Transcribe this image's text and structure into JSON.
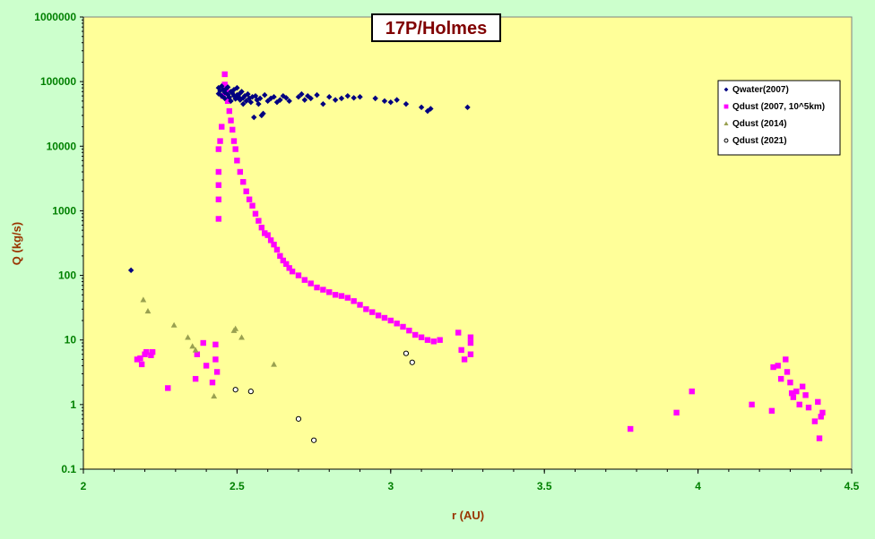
{
  "chart_data": {
    "type": "scatter",
    "title": "17P/Holmes",
    "xlabel": "r (AU)",
    "ylabel": "Q (kg/s)",
    "xlim": [
      2,
      4.5
    ],
    "ylim": [
      0.1,
      1000000
    ],
    "yscale": "log",
    "x_ticks": [
      "2",
      "2.5",
      "3",
      "3.5",
      "4",
      "4.5"
    ],
    "y_ticks": [
      "0.1",
      "1",
      "10",
      "100",
      "1000",
      "10000",
      "100000",
      "1000000"
    ],
    "grid": false,
    "legend_position": "top-right",
    "colors": {
      "page_background": "#ccffcc",
      "plot_background": "#ffff99",
      "water": "#000080",
      "dust2007": "#ff00ff",
      "dust2014": "#99a050",
      "dust2021": "#000000"
    },
    "series": [
      {
        "name": "Qwater(2007)",
        "marker": "diamond",
        "points": [
          [
            2.155,
            120
          ],
          [
            2.44,
            65000
          ],
          [
            2.44,
            80000
          ],
          [
            2.445,
            72000
          ],
          [
            2.45,
            60000
          ],
          [
            2.45,
            85000
          ],
          [
            2.455,
            75000
          ],
          [
            2.46,
            68000
          ],
          [
            2.46,
            55000
          ],
          [
            2.465,
            78000
          ],
          [
            2.47,
            63000
          ],
          [
            2.47,
            82000
          ],
          [
            2.475,
            57000
          ],
          [
            2.48,
            70000
          ],
          [
            2.48,
            50000
          ],
          [
            2.485,
            66000
          ],
          [
            2.49,
            60000
          ],
          [
            2.49,
            75000
          ],
          [
            2.495,
            54000
          ],
          [
            2.5,
            62000
          ],
          [
            2.5,
            80000
          ],
          [
            2.505,
            58000
          ],
          [
            2.51,
            52000
          ],
          [
            2.51,
            66000
          ],
          [
            2.515,
            70000
          ],
          [
            2.52,
            56000
          ],
          [
            2.52,
            45000
          ],
          [
            2.525,
            60000
          ],
          [
            2.53,
            50000
          ],
          [
            2.535,
            64000
          ],
          [
            2.54,
            55000
          ],
          [
            2.545,
            48000
          ],
          [
            2.55,
            58000
          ],
          [
            2.555,
            28000
          ],
          [
            2.56,
            60000
          ],
          [
            2.565,
            52000
          ],
          [
            2.57,
            45000
          ],
          [
            2.575,
            55000
          ],
          [
            2.58,
            30000
          ],
          [
            2.585,
            32000
          ],
          [
            2.59,
            62000
          ],
          [
            2.6,
            50000
          ],
          [
            2.61,
            55000
          ],
          [
            2.62,
            58000
          ],
          [
            2.63,
            48000
          ],
          [
            2.64,
            52000
          ],
          [
            2.65,
            60000
          ],
          [
            2.66,
            56000
          ],
          [
            2.67,
            50000
          ],
          [
            2.7,
            58000
          ],
          [
            2.71,
            64000
          ],
          [
            2.72,
            52000
          ],
          [
            2.73,
            60000
          ],
          [
            2.74,
            55000
          ],
          [
            2.76,
            62000
          ],
          [
            2.78,
            45000
          ],
          [
            2.8,
            58000
          ],
          [
            2.82,
            52000
          ],
          [
            2.84,
            55000
          ],
          [
            2.86,
            60000
          ],
          [
            2.88,
            56000
          ],
          [
            2.9,
            58000
          ],
          [
            2.95,
            55000
          ],
          [
            2.98,
            50000
          ],
          [
            3.0,
            48000
          ],
          [
            3.02,
            52000
          ],
          [
            3.05,
            45000
          ],
          [
            3.1,
            40000
          ],
          [
            3.12,
            35000
          ],
          [
            3.13,
            38000
          ],
          [
            3.25,
            40000
          ]
        ]
      },
      {
        "name": "Qdust (2007, 10^5km)",
        "marker": "square",
        "points": [
          [
            2.175,
            5
          ],
          [
            2.185,
            5.2
          ],
          [
            2.19,
            4.2
          ],
          [
            2.2,
            6
          ],
          [
            2.205,
            6.5
          ],
          [
            2.22,
            5.8
          ],
          [
            2.225,
            6.5
          ],
          [
            2.275,
            1.8
          ],
          [
            2.365,
            2.5
          ],
          [
            2.37,
            6
          ],
          [
            2.39,
            9
          ],
          [
            2.4,
            4
          ],
          [
            2.42,
            2.2
          ],
          [
            2.43,
            8.5
          ],
          [
            2.43,
            5
          ],
          [
            2.435,
            3.2
          ],
          [
            2.44,
            750
          ],
          [
            2.44,
            1500
          ],
          [
            2.44,
            2500
          ],
          [
            2.44,
            4000
          ],
          [
            2.44,
            9000
          ],
          [
            2.445,
            12000
          ],
          [
            2.45,
            20000
          ],
          [
            2.455,
            60000
          ],
          [
            2.46,
            90000
          ],
          [
            2.46,
            130000
          ],
          [
            2.465,
            70000
          ],
          [
            2.47,
            50000
          ],
          [
            2.475,
            35000
          ],
          [
            2.48,
            25000
          ],
          [
            2.485,
            18000
          ],
          [
            2.49,
            12000
          ],
          [
            2.495,
            9000
          ],
          [
            2.5,
            6000
          ],
          [
            2.51,
            4000
          ],
          [
            2.52,
            2800
          ],
          [
            2.53,
            2000
          ],
          [
            2.54,
            1500
          ],
          [
            2.55,
            1200
          ],
          [
            2.56,
            900
          ],
          [
            2.57,
            700
          ],
          [
            2.58,
            550
          ],
          [
            2.59,
            450
          ],
          [
            2.6,
            420
          ],
          [
            2.61,
            350
          ],
          [
            2.62,
            300
          ],
          [
            2.63,
            250
          ],
          [
            2.64,
            200
          ],
          [
            2.65,
            170
          ],
          [
            2.66,
            150
          ],
          [
            2.67,
            130
          ],
          [
            2.68,
            115
          ],
          [
            2.7,
            100
          ],
          [
            2.72,
            85
          ],
          [
            2.74,
            75
          ],
          [
            2.76,
            65
          ],
          [
            2.78,
            60
          ],
          [
            2.8,
            55
          ],
          [
            2.82,
            50
          ],
          [
            2.84,
            48
          ],
          [
            2.86,
            45
          ],
          [
            2.88,
            40
          ],
          [
            2.9,
            35
          ],
          [
            2.92,
            30
          ],
          [
            2.94,
            27
          ],
          [
            2.96,
            24
          ],
          [
            2.98,
            22
          ],
          [
            3.0,
            20
          ],
          [
            3.02,
            18
          ],
          [
            3.04,
            16
          ],
          [
            3.06,
            14
          ],
          [
            3.08,
            12
          ],
          [
            3.1,
            11
          ],
          [
            3.12,
            10
          ],
          [
            3.14,
            9.5
          ],
          [
            3.16,
            10
          ],
          [
            3.22,
            13
          ],
          [
            3.23,
            7
          ],
          [
            3.24,
            5
          ],
          [
            3.26,
            6
          ],
          [
            3.26,
            9
          ],
          [
            3.26,
            11
          ],
          [
            3.78,
            0.42
          ],
          [
            3.93,
            0.75
          ],
          [
            3.98,
            1.6
          ],
          [
            4.175,
            1.0
          ],
          [
            4.24,
            0.8
          ],
          [
            4.245,
            3.8
          ],
          [
            4.26,
            4
          ],
          [
            4.27,
            2.5
          ],
          [
            4.285,
            5
          ],
          [
            4.29,
            3.2
          ],
          [
            4.3,
            2.2
          ],
          [
            4.305,
            1.5
          ],
          [
            4.31,
            1.3
          ],
          [
            4.32,
            1.6
          ],
          [
            4.33,
            1.0
          ],
          [
            4.34,
            1.9
          ],
          [
            4.35,
            1.4
          ],
          [
            4.36,
            0.9
          ],
          [
            4.38,
            0.55
          ],
          [
            4.39,
            1.1
          ],
          [
            4.395,
            0.3
          ],
          [
            4.4,
            0.65
          ],
          [
            4.405,
            0.75
          ]
        ]
      },
      {
        "name": "Qdust (2014)",
        "marker": "triangle",
        "points": [
          [
            2.195,
            42
          ],
          [
            2.21,
            28
          ],
          [
            2.295,
            17
          ],
          [
            2.34,
            11
          ],
          [
            2.355,
            8
          ],
          [
            2.365,
            7
          ],
          [
            2.425,
            1.35
          ],
          [
            2.49,
            14
          ],
          [
            2.495,
            15
          ],
          [
            2.515,
            11
          ],
          [
            2.62,
            4.2
          ]
        ]
      },
      {
        "name": "Qdust (2021)",
        "marker": "circle",
        "points": [
          [
            2.495,
            1.7
          ],
          [
            2.545,
            1.6
          ],
          [
            2.7,
            0.6
          ],
          [
            2.75,
            0.28
          ],
          [
            3.05,
            6.2
          ],
          [
            3.07,
            4.5
          ]
        ]
      }
    ]
  }
}
